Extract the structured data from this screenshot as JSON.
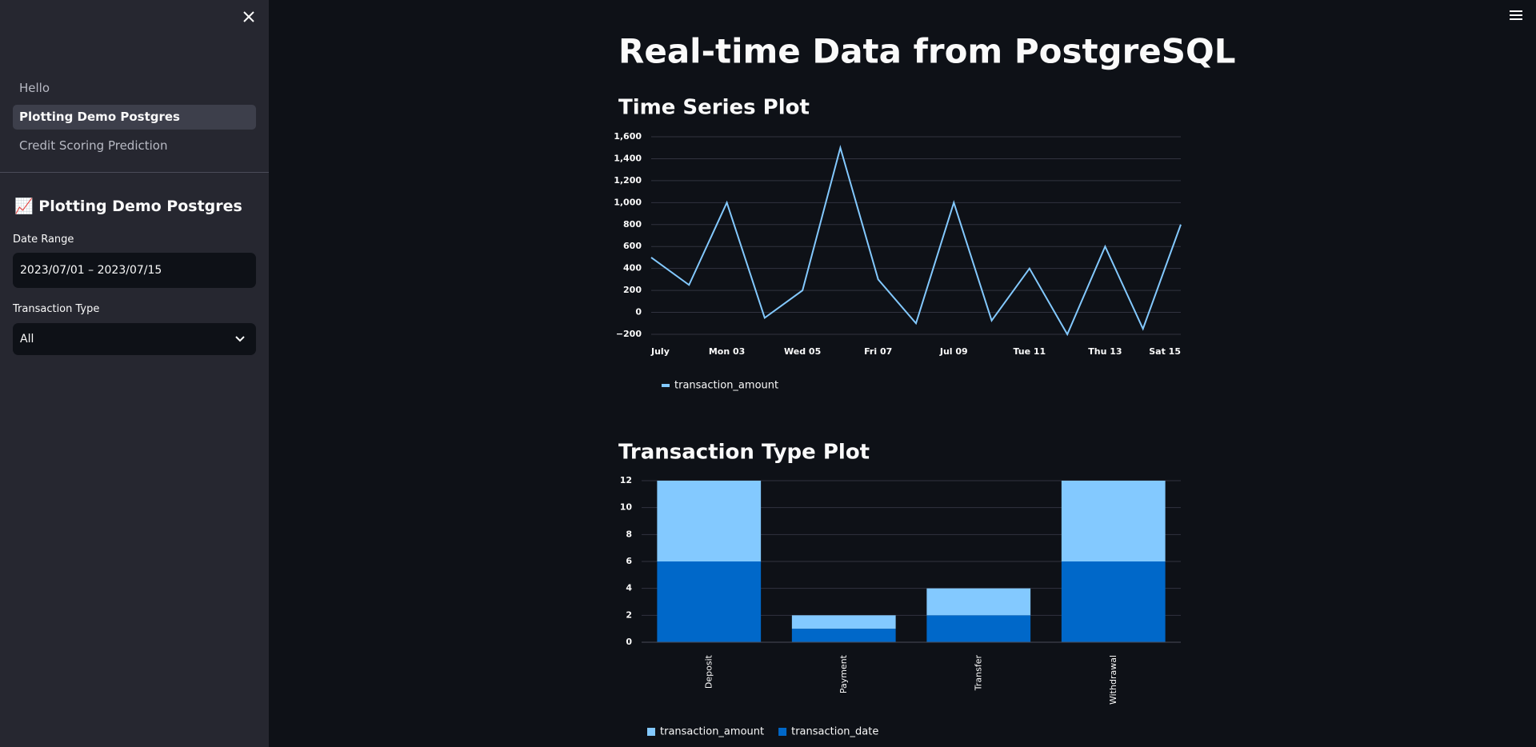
{
  "sidebar": {
    "nav": [
      "Hello",
      "Plotting Demo Postgres",
      "Credit Scoring Prediction"
    ],
    "header": "📈 Plotting Demo Postgres",
    "date_range_label": "Date Range",
    "date_range_value": "2023/07/01 – 2023/07/15",
    "transaction_type_label": "Transaction Type",
    "transaction_type_value": "All"
  },
  "page": {
    "title": "Real-time Data from PostgreSQL"
  },
  "chart_data": [
    {
      "type": "line",
      "title": "Time Series Plot",
      "x": [
        1,
        2,
        3,
        4,
        5,
        6,
        7,
        8,
        9,
        10,
        11,
        12,
        13,
        14,
        15
      ],
      "xlim": [
        1,
        15
      ],
      "xticks": [
        {
          "value": 1,
          "label": "July"
        },
        {
          "value": 3,
          "label": "Mon 03"
        },
        {
          "value": 5,
          "label": "Wed 05"
        },
        {
          "value": 7,
          "label": "Fri 07"
        },
        {
          "value": 9,
          "label": "Jul 09"
        },
        {
          "value": 11,
          "label": "Tue 11"
        },
        {
          "value": 13,
          "label": "Thu 13"
        },
        {
          "value": 15,
          "label": "Sat 15"
        }
      ],
      "ylim": [
        -200,
        1600
      ],
      "yticks": [
        {
          "value": -200,
          "label": "−200"
        },
        0,
        200,
        400,
        600,
        800,
        {
          "value": 1000,
          "label": "1,000"
        },
        {
          "value": 1200,
          "label": "1,200"
        },
        {
          "value": 1400,
          "label": "1,400"
        },
        {
          "value": 1600,
          "label": "1,600"
        }
      ],
      "grid": true,
      "legend": "bottom-left",
      "series": [
        {
          "name": "transaction_amount",
          "color": "#83c9ff",
          "values": [
            500,
            250,
            1000,
            -50,
            200,
            1500,
            300,
            -100,
            1000,
            -75,
            400,
            -200,
            600,
            -150,
            800
          ]
        }
      ]
    },
    {
      "type": "bar",
      "title": "Transaction Type Plot",
      "stacked": true,
      "categories": [
        "Deposit",
        "Payment",
        "Transfer",
        "Withdrawal"
      ],
      "ylim": [
        0,
        12
      ],
      "yticks": [
        0,
        2,
        4,
        6,
        8,
        10,
        12
      ],
      "grid": true,
      "legend": "bottom-left",
      "series": [
        {
          "name": "transaction_amount",
          "color": "#83c9ff",
          "values": [
            6,
            1,
            2,
            6
          ]
        },
        {
          "name": "transaction_date",
          "color": "#0068c9",
          "values": [
            6,
            1,
            2,
            6
          ]
        }
      ]
    }
  ]
}
